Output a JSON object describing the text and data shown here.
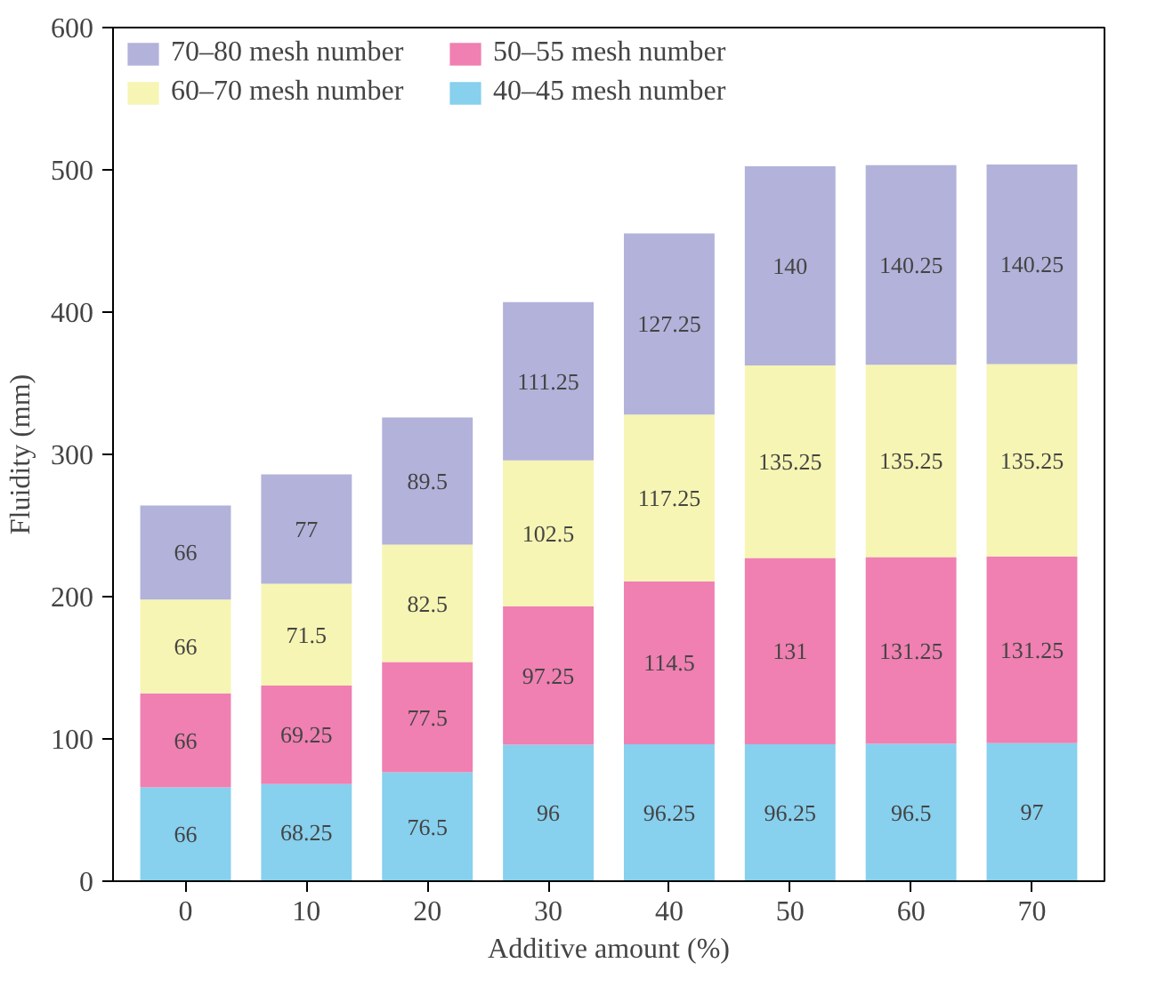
{
  "chart_data": {
    "type": "bar",
    "stacked": true,
    "xlabel": "Additive amount (%)",
    "ylabel": "Fluidity (mm)",
    "categories": [
      "0",
      "10",
      "20",
      "30",
      "40",
      "50",
      "60",
      "70"
    ],
    "series": [
      {
        "name": "40–45 mesh number",
        "color": "#87d0ee",
        "values": [
          66,
          68.25,
          76.5,
          96,
          96.25,
          96.25,
          96.5,
          97
        ]
      },
      {
        "name": "50–55 mesh number",
        "color": "#ef80b1",
        "values": [
          66,
          69.25,
          77.5,
          97.25,
          114.5,
          131,
          131.25,
          131.25
        ]
      },
      {
        "name": "60–70 mesh number",
        "color": "#f6f5b3",
        "values": [
          66,
          71.5,
          82.5,
          102.5,
          117.25,
          135.25,
          135.25,
          135.25
        ]
      },
      {
        "name": "70–80 mesh number",
        "color": "#b2b2da",
        "values": [
          66,
          77,
          89.5,
          111.25,
          127.25,
          140,
          140.25,
          140.25
        ]
      }
    ],
    "ylim": [
      0,
      600
    ],
    "yticks": [
      0,
      100,
      200,
      300,
      400,
      500,
      600
    ],
    "data_labels": true,
    "legend": "top left",
    "grid": false
  }
}
